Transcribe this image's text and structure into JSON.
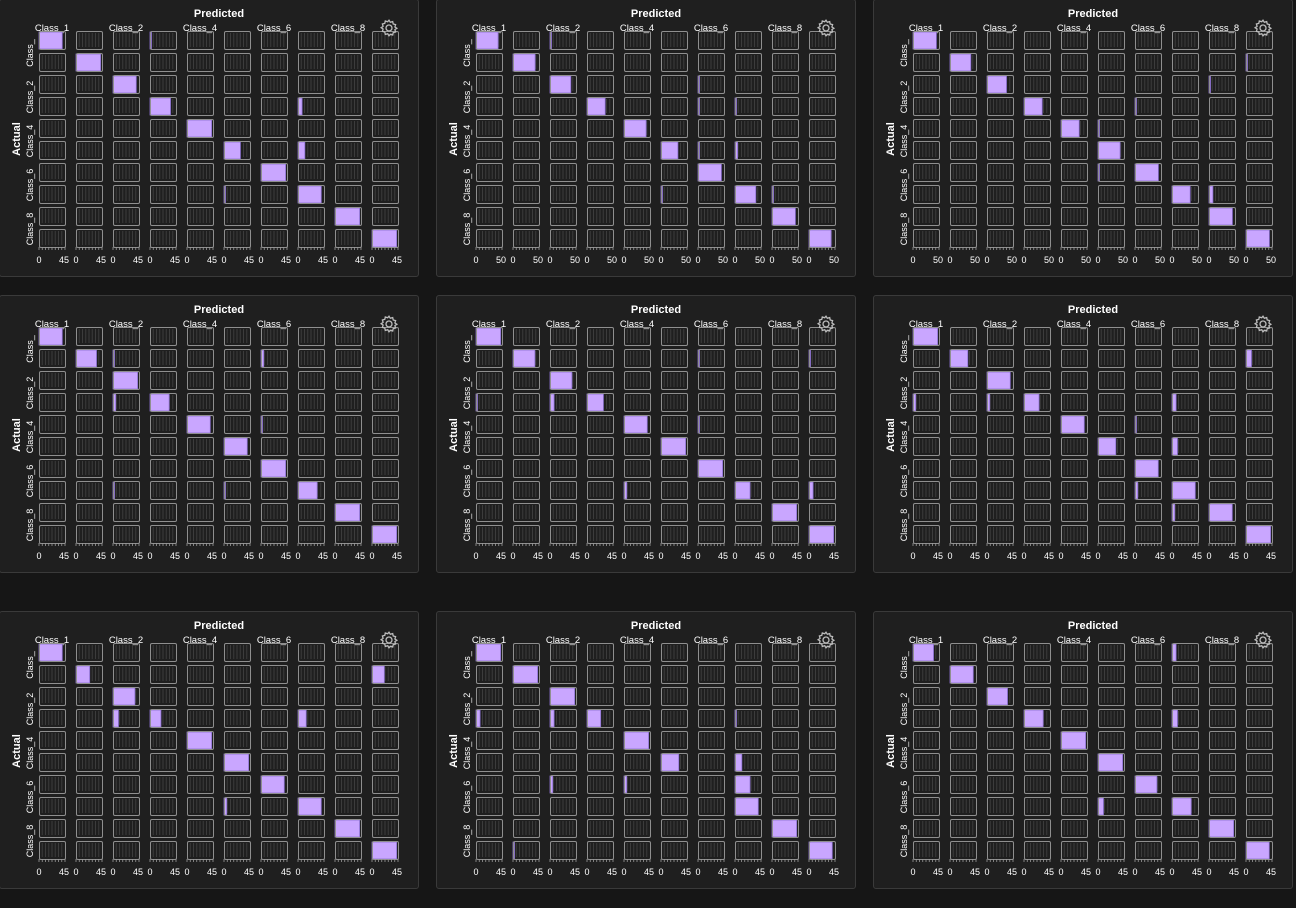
{
  "theme": {
    "background": "#161616",
    "panel": "#1f1f1f",
    "panel_border": "#3a3a3a",
    "bar_fill": "#c9a6ff",
    "bar_stroke": "#8a6fcf",
    "cell_border": "#8f8f8f",
    "text": "#ffffff"
  },
  "common": {
    "title": "Predicted",
    "ylabel": "Actual",
    "col_labels": [
      "Class_1",
      "Class_2",
      "Class_4",
      "Class_6",
      "Class_8"
    ],
    "row_labels": [
      "Class_",
      "Class_2",
      "Class_4",
      "Class_6",
      "Class_8"
    ],
    "settings_icon": "gear-icon"
  },
  "chart_data": [
    {
      "type": "heatmap",
      "title": "Predicted",
      "ylabel": "Actual",
      "tick_labels": [
        "0",
        "45"
      ],
      "values": [
        [
          85,
          0,
          0,
          3,
          0,
          0,
          0,
          0,
          0,
          0
        ],
        [
          0,
          90,
          0,
          0,
          0,
          0,
          0,
          0,
          0,
          0
        ],
        [
          0,
          0,
          85,
          0,
          0,
          0,
          0,
          0,
          0,
          0
        ],
        [
          0,
          0,
          0,
          75,
          0,
          0,
          0,
          15,
          0,
          0
        ],
        [
          0,
          0,
          0,
          0,
          90,
          0,
          0,
          0,
          0,
          0
        ],
        [
          0,
          0,
          0,
          0,
          0,
          60,
          0,
          25,
          0,
          0
        ],
        [
          0,
          0,
          0,
          0,
          0,
          0,
          90,
          0,
          0,
          0
        ],
        [
          0,
          0,
          0,
          0,
          0,
          3,
          0,
          85,
          0,
          0
        ],
        [
          0,
          0,
          0,
          0,
          0,
          0,
          0,
          0,
          90,
          0
        ],
        [
          0,
          0,
          0,
          0,
          0,
          0,
          0,
          0,
          0,
          90
        ]
      ]
    },
    {
      "type": "heatmap",
      "title": "Predicted",
      "ylabel": "Actual",
      "tick_labels": [
        "0",
        "50"
      ],
      "values": [
        [
          85,
          0,
          3,
          0,
          0,
          0,
          0,
          0,
          0,
          0
        ],
        [
          0,
          85,
          0,
          0,
          0,
          0,
          0,
          0,
          0,
          0
        ],
        [
          0,
          0,
          80,
          0,
          0,
          0,
          3,
          0,
          0,
          0
        ],
        [
          0,
          0,
          0,
          70,
          0,
          0,
          5,
          5,
          0,
          0
        ],
        [
          0,
          0,
          0,
          0,
          85,
          0,
          0,
          0,
          0,
          0
        ],
        [
          0,
          0,
          0,
          0,
          0,
          65,
          3,
          10,
          0,
          0
        ],
        [
          0,
          0,
          0,
          0,
          0,
          0,
          90,
          0,
          0,
          0
        ],
        [
          0,
          0,
          0,
          0,
          0,
          3,
          0,
          80,
          3,
          0
        ],
        [
          0,
          0,
          0,
          0,
          0,
          0,
          0,
          0,
          90,
          0
        ],
        [
          0,
          0,
          0,
          0,
          0,
          0,
          0,
          0,
          0,
          85
        ]
      ]
    },
    {
      "type": "heatmap",
      "title": "Predicted",
      "ylabel": "Actual",
      "tick_labels": [
        "0",
        "50"
      ],
      "values": [
        [
          90,
          0,
          0,
          0,
          0,
          0,
          0,
          0,
          0,
          0
        ],
        [
          0,
          80,
          0,
          0,
          0,
          0,
          0,
          0,
          0,
          3
        ],
        [
          0,
          0,
          75,
          0,
          0,
          0,
          0,
          0,
          3,
          0
        ],
        [
          0,
          0,
          0,
          70,
          0,
          0,
          5,
          0,
          0,
          0
        ],
        [
          0,
          0,
          0,
          0,
          70,
          5,
          0,
          0,
          0,
          0
        ],
        [
          0,
          0,
          0,
          0,
          0,
          85,
          0,
          0,
          0,
          0
        ],
        [
          0,
          0,
          0,
          0,
          0,
          3,
          90,
          0,
          0,
          0
        ],
        [
          0,
          0,
          0,
          0,
          0,
          0,
          0,
          70,
          15,
          0
        ],
        [
          0,
          0,
          0,
          0,
          0,
          0,
          0,
          0,
          90,
          0
        ],
        [
          0,
          0,
          0,
          0,
          0,
          0,
          0,
          0,
          0,
          90
        ]
      ]
    },
    {
      "type": "heatmap",
      "title": "Predicted",
      "ylabel": "Actual",
      "tick_labels": [
        "0",
        "45"
      ],
      "values": [
        [
          85,
          0,
          0,
          0,
          0,
          0,
          0,
          0,
          0,
          0
        ],
        [
          0,
          75,
          5,
          0,
          0,
          0,
          10,
          0,
          0,
          0
        ],
        [
          0,
          0,
          90,
          0,
          0,
          0,
          0,
          0,
          0,
          0
        ],
        [
          0,
          0,
          10,
          70,
          0,
          0,
          0,
          0,
          0,
          0
        ],
        [
          0,
          0,
          0,
          0,
          85,
          0,
          3,
          0,
          0,
          0
        ],
        [
          0,
          0,
          0,
          0,
          0,
          85,
          0,
          0,
          0,
          0
        ],
        [
          0,
          0,
          0,
          0,
          0,
          0,
          90,
          0,
          0,
          0
        ],
        [
          0,
          0,
          5,
          0,
          0,
          5,
          0,
          70,
          0,
          0
        ],
        [
          0,
          0,
          0,
          0,
          0,
          0,
          0,
          0,
          90,
          0
        ],
        [
          0,
          0,
          0,
          0,
          0,
          0,
          0,
          0,
          0,
          90
        ]
      ]
    },
    {
      "type": "heatmap",
      "title": "Predicted",
      "ylabel": "Actual",
      "tick_labels": [
        "0",
        "45"
      ],
      "values": [
        [
          90,
          0,
          0,
          0,
          0,
          0,
          0,
          0,
          0,
          0
        ],
        [
          0,
          80,
          0,
          0,
          0,
          0,
          3,
          0,
          0,
          3
        ],
        [
          0,
          0,
          80,
          0,
          0,
          0,
          0,
          0,
          0,
          0
        ],
        [
          5,
          0,
          15,
          60,
          0,
          0,
          0,
          0,
          0,
          0
        ],
        [
          0,
          0,
          0,
          0,
          85,
          0,
          3,
          0,
          0,
          0
        ],
        [
          0,
          0,
          0,
          0,
          0,
          90,
          0,
          0,
          0,
          0
        ],
        [
          0,
          0,
          0,
          0,
          0,
          0,
          90,
          0,
          0,
          0
        ],
        [
          0,
          0,
          0,
          0,
          10,
          0,
          0,
          55,
          0,
          15
        ],
        [
          0,
          0,
          0,
          0,
          0,
          0,
          0,
          0,
          90,
          0
        ],
        [
          0,
          0,
          0,
          0,
          0,
          0,
          0,
          0,
          0,
          90
        ]
      ]
    },
    {
      "type": "heatmap",
      "title": "Predicted",
      "ylabel": "Actual",
      "tick_labels": [
        "0",
        "45"
      ],
      "values": [
        [
          90,
          0,
          0,
          0,
          0,
          0,
          0,
          0,
          0,
          0
        ],
        [
          0,
          65,
          0,
          0,
          0,
          0,
          0,
          0,
          0,
          20
        ],
        [
          0,
          0,
          85,
          0,
          0,
          0,
          0,
          0,
          0,
          0
        ],
        [
          10,
          0,
          10,
          55,
          0,
          0,
          0,
          15,
          0,
          0
        ],
        [
          0,
          0,
          0,
          0,
          85,
          0,
          3,
          0,
          0,
          0
        ],
        [
          0,
          0,
          0,
          0,
          0,
          65,
          0,
          20,
          0,
          0
        ],
        [
          0,
          0,
          0,
          0,
          0,
          0,
          85,
          0,
          0,
          0
        ],
        [
          0,
          0,
          0,
          0,
          0,
          0,
          10,
          85,
          0,
          0
        ],
        [
          0,
          0,
          0,
          0,
          0,
          0,
          0,
          10,
          85,
          0
        ],
        [
          0,
          0,
          0,
          0,
          0,
          0,
          0,
          0,
          0,
          90
        ]
      ]
    },
    {
      "type": "heatmap",
      "title": "Predicted",
      "ylabel": "Actual",
      "tick_labels": [
        "0",
        "45"
      ],
      "values": [
        [
          85,
          0,
          0,
          0,
          0,
          0,
          0,
          0,
          0,
          0
        ],
        [
          0,
          50,
          0,
          0,
          0,
          0,
          0,
          0,
          0,
          45
        ],
        [
          0,
          0,
          80,
          0,
          0,
          0,
          0,
          0,
          0,
          0
        ],
        [
          0,
          0,
          20,
          40,
          0,
          0,
          0,
          30,
          0,
          0
        ],
        [
          0,
          0,
          0,
          0,
          90,
          0,
          0,
          0,
          0,
          0
        ],
        [
          0,
          0,
          0,
          0,
          0,
          90,
          0,
          0,
          0,
          0
        ],
        [
          0,
          0,
          0,
          0,
          0,
          0,
          85,
          0,
          0,
          0
        ],
        [
          0,
          0,
          0,
          0,
          0,
          10,
          0,
          85,
          0,
          0
        ],
        [
          0,
          0,
          0,
          0,
          0,
          0,
          0,
          0,
          90,
          0
        ],
        [
          0,
          0,
          0,
          0,
          0,
          0,
          0,
          0,
          0,
          90
        ]
      ]
    },
    {
      "type": "heatmap",
      "title": "Predicted",
      "ylabel": "Actual",
      "tick_labels": [
        "0",
        "45"
      ],
      "values": [
        [
          90,
          0,
          0,
          0,
          0,
          0,
          0,
          0,
          0,
          0
        ],
        [
          0,
          90,
          0,
          0,
          0,
          0,
          0,
          0,
          0,
          0
        ],
        [
          0,
          0,
          90,
          0,
          0,
          0,
          0,
          0,
          0,
          0
        ],
        [
          15,
          0,
          15,
          50,
          0,
          0,
          0,
          5,
          0,
          0
        ],
        [
          0,
          0,
          0,
          0,
          90,
          0,
          0,
          0,
          0,
          0
        ],
        [
          0,
          0,
          0,
          0,
          0,
          65,
          0,
          25,
          0,
          0
        ],
        [
          0,
          0,
          10,
          0,
          10,
          0,
          0,
          55,
          0,
          0
        ],
        [
          0,
          0,
          0,
          0,
          0,
          0,
          0,
          85,
          0,
          0
        ],
        [
          0,
          0,
          0,
          0,
          0,
          0,
          0,
          0,
          90,
          0
        ],
        [
          0,
          3,
          0,
          0,
          0,
          0,
          0,
          0,
          0,
          85
        ]
      ]
    },
    {
      "type": "heatmap",
      "title": "Predicted",
      "ylabel": "Actual",
      "tick_labels": [
        "0",
        "45"
      ],
      "values": [
        [
          75,
          0,
          0,
          0,
          0,
          0,
          0,
          15,
          0,
          0
        ],
        [
          0,
          85,
          0,
          0,
          0,
          0,
          0,
          0,
          0,
          0
        ],
        [
          0,
          0,
          75,
          0,
          0,
          0,
          0,
          0,
          0,
          0
        ],
        [
          0,
          0,
          0,
          70,
          0,
          0,
          0,
          20,
          0,
          0
        ],
        [
          0,
          0,
          0,
          0,
          90,
          0,
          0,
          0,
          0,
          0
        ],
        [
          0,
          0,
          0,
          0,
          0,
          90,
          0,
          0,
          0,
          0
        ],
        [
          0,
          0,
          0,
          0,
          0,
          0,
          80,
          0,
          0,
          0
        ],
        [
          0,
          0,
          0,
          0,
          0,
          20,
          0,
          70,
          0,
          0
        ],
        [
          0,
          0,
          0,
          0,
          0,
          0,
          0,
          0,
          90,
          0
        ],
        [
          0,
          0,
          0,
          0,
          0,
          0,
          0,
          0,
          0,
          85
        ]
      ]
    }
  ]
}
